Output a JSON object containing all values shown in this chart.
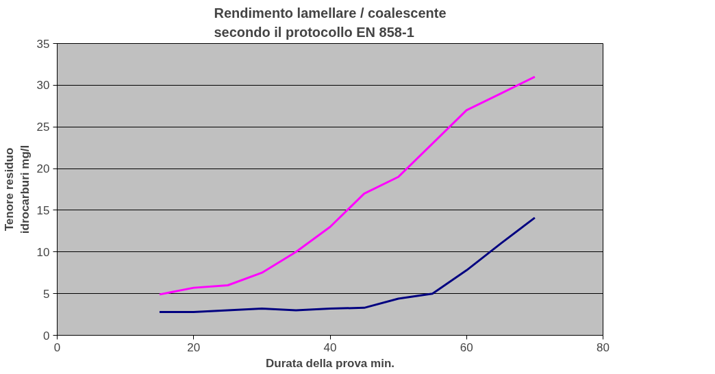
{
  "chart_data": {
    "type": "line",
    "title": "Rendimento lamellare / coalescente\nsecondo il protocollo EN 858-1",
    "xlabel": "Durata della prova min.",
    "ylabel": "Tenore residuo\nidrocarburi mg/l",
    "xlim": [
      0,
      80
    ],
    "xticks": [
      0,
      20,
      40,
      60,
      80
    ],
    "ylim": [
      0,
      35
    ],
    "yticks": [
      0,
      5,
      10,
      15,
      20,
      25,
      30,
      35
    ],
    "grid": "y",
    "x": [
      15,
      20,
      25,
      30,
      35,
      40,
      45,
      50,
      55,
      60,
      65,
      70
    ],
    "series": [
      {
        "color": "#000080",
        "values": [
          2.8,
          2.8,
          3.0,
          3.2,
          3.0,
          3.2,
          3.3,
          4.4,
          5.0,
          7.8,
          11,
          14.1
        ]
      },
      {
        "color": "#ff00ff",
        "values": [
          4.9,
          5.7,
          6.0,
          7.5,
          10,
          13,
          17,
          19,
          23,
          27,
          29,
          31
        ]
      }
    ]
  }
}
